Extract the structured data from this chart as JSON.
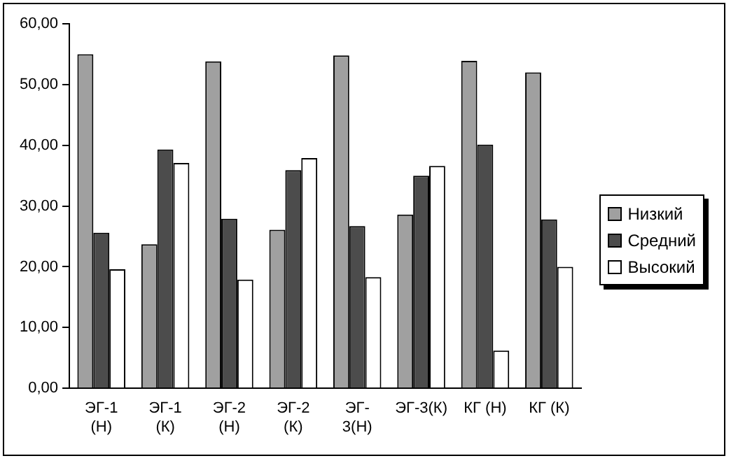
{
  "chart_data": {
    "type": "bar",
    "categories": [
      "ЭГ-1 (Н)",
      "ЭГ-1 (К)",
      "ЭГ-2 (Н)",
      "ЭГ-2 (К)",
      "ЭГ-3(Н)",
      "ЭГ-3(К)",
      "КГ (Н)",
      "КГ (К)"
    ],
    "series": [
      {
        "name": "Низкий",
        "color": "#a0a0a0",
        "values": [
          55,
          23.7,
          53.8,
          26.1,
          54.8,
          28.6,
          53.9,
          52
        ]
      },
      {
        "name": "Средний",
        "color": "#4c4c4c",
        "values": [
          25.6,
          39.3,
          27.9,
          35.9,
          26.7,
          35,
          40.1,
          27.8
        ]
      },
      {
        "name": "Высокий",
        "color": "#ffffff",
        "values": [
          19.6,
          37.1,
          17.9,
          37.9,
          18.3,
          36.6,
          6.2,
          20
        ]
      }
    ],
    "ylim": [
      0,
      60
    ],
    "yticks": [
      {
        "value": 0,
        "label": "0,00"
      },
      {
        "value": 10,
        "label": "10,00"
      },
      {
        "value": 20,
        "label": "20,00"
      },
      {
        "value": 30,
        "label": "30,00"
      },
      {
        "value": 40,
        "label": "40,00"
      },
      {
        "value": 50,
        "label": "50,00"
      },
      {
        "value": 60,
        "label": "60,00"
      }
    ],
    "grid": false,
    "legend": "right"
  }
}
